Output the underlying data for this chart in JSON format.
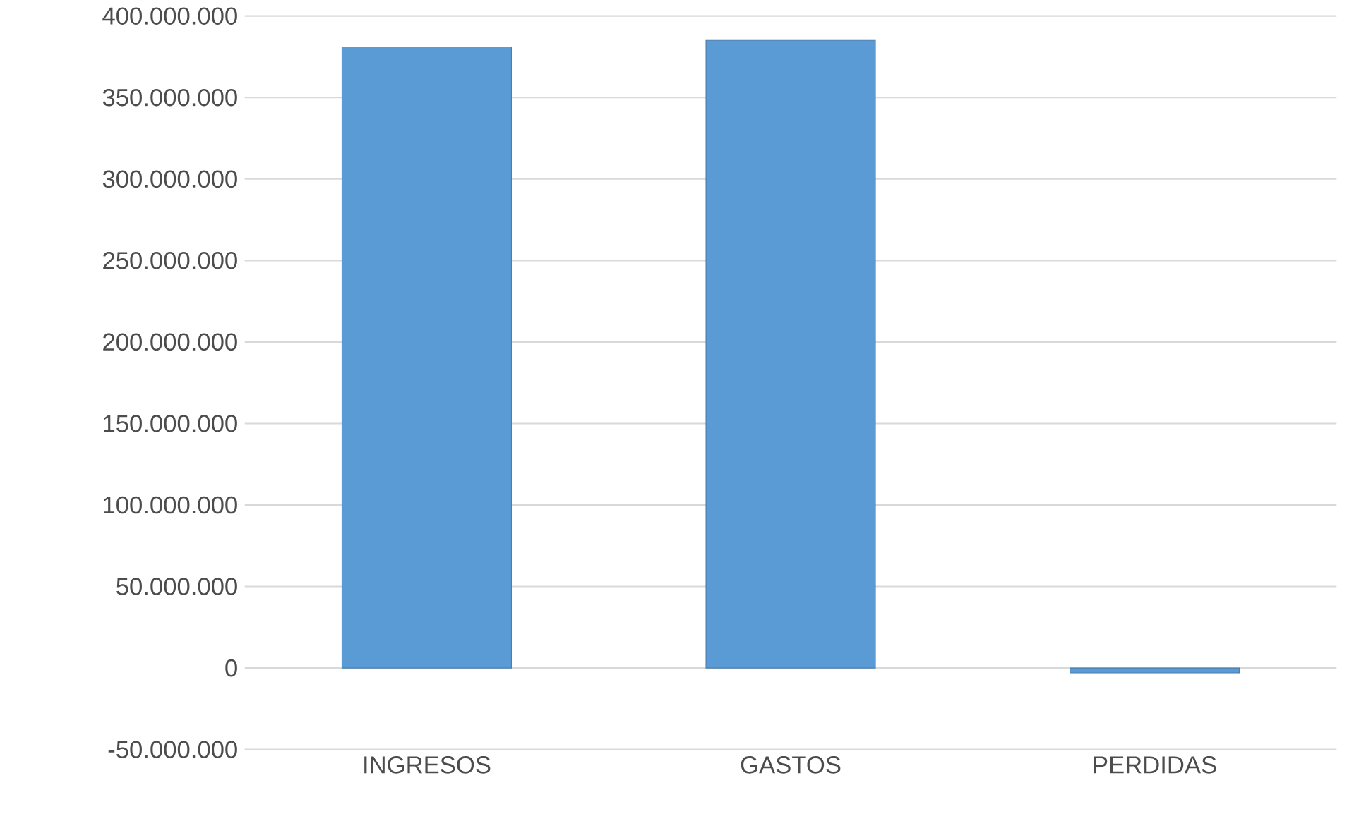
{
  "chart_data": {
    "type": "bar",
    "categories": [
      "INGRESOS",
      "GASTOS",
      "PERDIDAS"
    ],
    "values": [
      381000000,
      385000000,
      -3000000
    ],
    "color": "#5b9bd5",
    "ylim": [
      -50000000,
      400000000
    ],
    "yticks": [
      {
        "value": -50000000,
        "label": "-50.000.000"
      },
      0,
      {
        "value": 50000000,
        "label": "50.000.000"
      },
      {
        "value": 100000000,
        "label": "100.000.000"
      },
      {
        "value": 150000000,
        "label": "150.000.000"
      },
      {
        "value": 200000000,
        "label": "200.000.000"
      },
      {
        "value": 250000000,
        "label": "250.000.000"
      },
      {
        "value": 300000000,
        "label": "300.000.000"
      },
      {
        "value": 350000000,
        "label": "350.000.000"
      },
      {
        "value": 400000000,
        "label": "400.000.000"
      }
    ],
    "grid": "y"
  }
}
